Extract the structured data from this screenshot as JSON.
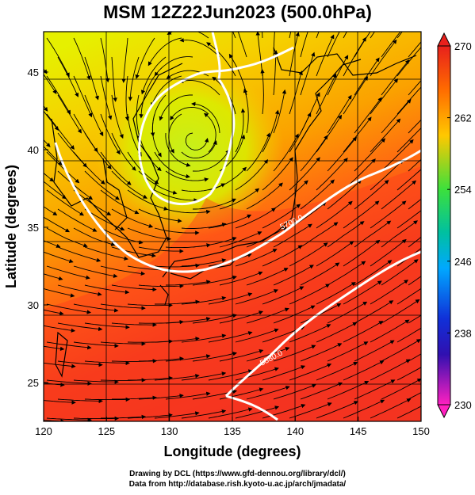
{
  "title": "MSM 12Z22Jun2023 (500.0hPa)",
  "x_axis": {
    "label": "Longitude (degrees)",
    "ticks": [
      120,
      125,
      130,
      135,
      140,
      145,
      150
    ],
    "range": [
      120,
      150
    ]
  },
  "y_axis": {
    "label": "Latitude  (degrees)",
    "ticks": [
      25,
      30,
      35,
      40,
      45
    ],
    "range": [
      22.5,
      47.6
    ]
  },
  "colorbar": {
    "ticks": [
      270,
      262,
      254,
      246,
      238,
      230
    ],
    "range": [
      230,
      270
    ]
  },
  "contours": [
    {
      "label": "5700.0",
      "lon": 136.8,
      "lat": 34.6
    },
    {
      "label": "5880.0",
      "lon": 137.6,
      "lat": 27.4
    }
  ],
  "low_center": {
    "lon": 132,
    "lat": 40.3
  },
  "footer": {
    "line1": "Drawing by DCL (https://www.gfd-dennou.org/library/dcl/)",
    "line2": "Data from http://database.rish.kyoto-u.ac.jp/arch/jmadata/"
  },
  "colors": {
    "cold": "#d8f000",
    "mid": "#f4c800",
    "warm": "#ff5a12",
    "hot": "#ec2c22"
  }
}
